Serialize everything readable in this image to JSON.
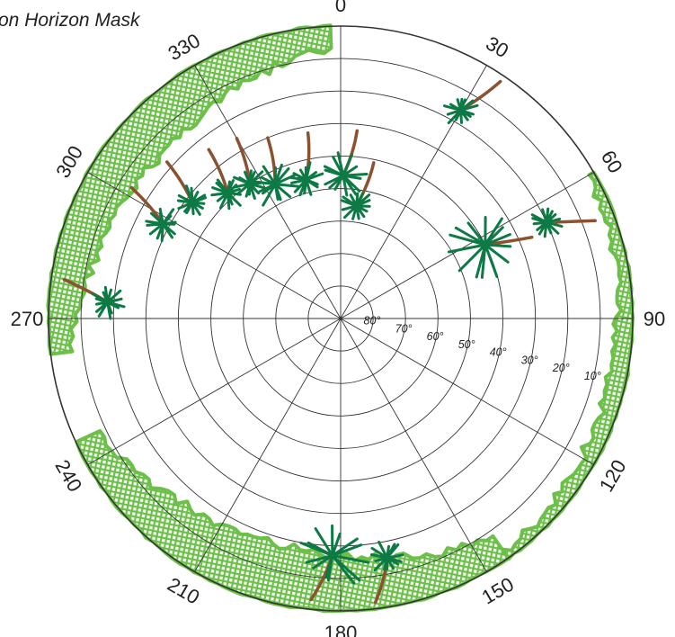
{
  "title": "on Horizon Mask",
  "azimuth_labels": [
    {
      "deg": 0,
      "text": "0"
    },
    {
      "deg": 30,
      "text": "30"
    },
    {
      "deg": 60,
      "text": "60"
    },
    {
      "deg": 90,
      "text": "90"
    },
    {
      "deg": 120,
      "text": "120"
    },
    {
      "deg": 150,
      "text": "150"
    },
    {
      "deg": 180,
      "text": "180"
    },
    {
      "deg": 210,
      "text": "210"
    },
    {
      "deg": 240,
      "text": "240"
    },
    {
      "deg": 270,
      "text": "270"
    },
    {
      "deg": 300,
      "text": "300"
    },
    {
      "deg": 330,
      "text": "330"
    }
  ],
  "elevation_labels": [
    {
      "elev": 80,
      "text": "80°"
    },
    {
      "elev": 70,
      "text": "70°"
    },
    {
      "elev": 60,
      "text": "60°"
    },
    {
      "elev": 50,
      "text": "50°"
    },
    {
      "elev": 40,
      "text": "40°"
    },
    {
      "elev": 30,
      "text": "30°"
    },
    {
      "elev": 20,
      "text": "20°"
    },
    {
      "elev": 10,
      "text": "10°"
    }
  ],
  "colors": {
    "foliage": "#6cc04a",
    "tree_crown": "#0d7a45",
    "trunk": "#8a5230",
    "grid": "#333333"
  },
  "obstructions": [
    {
      "name": "upper-left-canopy",
      "from_az": 263,
      "to_az": 358,
      "min_elev": 15,
      "max_elev": 0
    },
    {
      "name": "right-edge-hedge",
      "from_az": 60,
      "to_az": 145,
      "min_elev": 5,
      "max_elev": 0
    },
    {
      "name": "bottom-hedge",
      "from_az": 145,
      "to_az": 245,
      "min_elev": 18,
      "max_elev": 0
    }
  ],
  "trees": [
    {
      "az": 8,
      "elev": 55,
      "size": "small"
    },
    {
      "az": 1,
      "elev": 46,
      "size": "medium"
    },
    {
      "az": 346,
      "elev": 46,
      "size": "small"
    },
    {
      "az": 334,
      "elev": 44,
      "size": "medium"
    },
    {
      "az": 326,
      "elev": 40,
      "size": "small"
    },
    {
      "az": 318,
      "elev": 38,
      "size": "small"
    },
    {
      "az": 308,
      "elev": 32,
      "size": "small"
    },
    {
      "az": 298,
      "elev": 28,
      "size": "small"
    },
    {
      "az": 274,
      "elev": 18,
      "size": "small"
    },
    {
      "az": 30,
      "elev": 16,
      "size": "small"
    },
    {
      "az": 63,
      "elev": 40,
      "size": "large"
    },
    {
      "az": 65,
      "elev": 20,
      "size": "small"
    },
    {
      "az": 182,
      "elev": 17,
      "size": "large"
    },
    {
      "az": 169,
      "elev": 15,
      "size": "small"
    }
  ]
}
